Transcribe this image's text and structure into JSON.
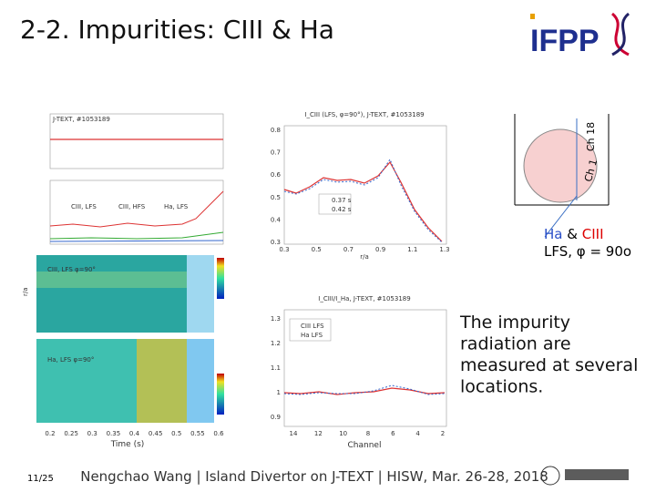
{
  "header": {
    "title": "2-2. Impurities: CIII & Ha",
    "logo": "IFPP"
  },
  "left_figure": {
    "shot": "J-TEXT, #1053189",
    "legend": [
      "CIII, LFS",
      "CIII, HFS",
      "Ha, LFS"
    ],
    "panel_labels": [
      "CIII, LFS φ=90°",
      "Ha, LFS φ=90°"
    ],
    "x_ticks": [
      "0.2",
      "0.25",
      "0.3",
      "0.35",
      "0.4",
      "0.45",
      "0.5",
      "0.55",
      "0.6"
    ],
    "x_label": "Time (s)",
    "y_label_contour": "r/a"
  },
  "profile_plot": {
    "title": "I_CIII (LFS, φ=90°), J-TEXT, #1053189",
    "y_ticks": [
      "0.8",
      "0.7",
      "0.6",
      "0.5",
      "0.4",
      "0.3"
    ],
    "x_ticks": [
      "0.3",
      "0.5",
      "0.7",
      "0.9",
      "1.1",
      "1.3"
    ],
    "x_label": "r/a",
    "legend": [
      "0.37 s",
      "0.42 s"
    ]
  },
  "ratio_plot": {
    "title": "I_CIII/I_Ha, J-TEXT, #1053189",
    "y_ticks": [
      "1.3",
      "1.2",
      "1.1",
      "1",
      "0.9"
    ],
    "x_ticks": [
      "14",
      "12",
      "10",
      "8",
      "6",
      "4",
      "2"
    ],
    "x_label": "Channel",
    "legend": [
      "CIII LFS",
      "Ha LFS"
    ]
  },
  "diagram": {
    "ch_top": "Ch 18",
    "ch_bottom": "Ch 1",
    "caption_ha": "Ha",
    "caption_amp": "&",
    "caption_ciii": "CIII",
    "caption_line2": "LFS, φ = 90o"
  },
  "body": {
    "lines": [
      "The impurity",
      "radiation are",
      "measured at several",
      "locations."
    ]
  },
  "footer": {
    "page": "11/25",
    "text": "Nengchao Wang | Island Divertor on J-TEXT | HISW, Mar. 26-28, 2018"
  }
}
